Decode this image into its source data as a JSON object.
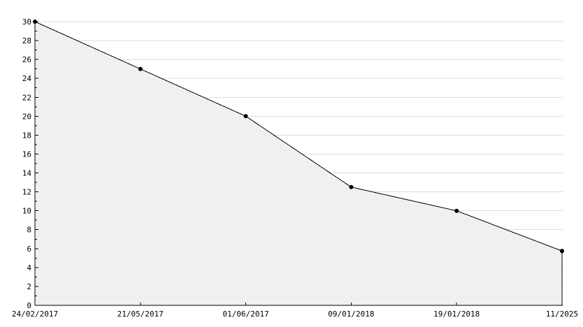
{
  "chart_data": {
    "type": "area",
    "title": "",
    "xlabel": "",
    "ylabel": "",
    "categories": [
      "24/02/2017",
      "21/05/2017",
      "01/06/2017",
      "09/01/2018",
      "19/01/2018",
      "11/2025"
    ],
    "values": [
      30,
      25,
      20,
      12.5,
      10,
      5.75
    ],
    "ylim": [
      0,
      30
    ],
    "y_ticks": [
      0,
      2,
      4,
      6,
      8,
      10,
      12,
      14,
      16,
      18,
      20,
      22,
      24,
      26,
      28,
      30
    ],
    "y_minor_tick_step": 1,
    "grid": true,
    "legend": "none",
    "marker": "filled-circle",
    "colors": {
      "background": "#ffffff",
      "fill": "#f0f0f0",
      "grid": "#dcdcdc",
      "line": "#000000",
      "marker": "#000000",
      "axis": "#000000",
      "label": "#000000"
    }
  }
}
